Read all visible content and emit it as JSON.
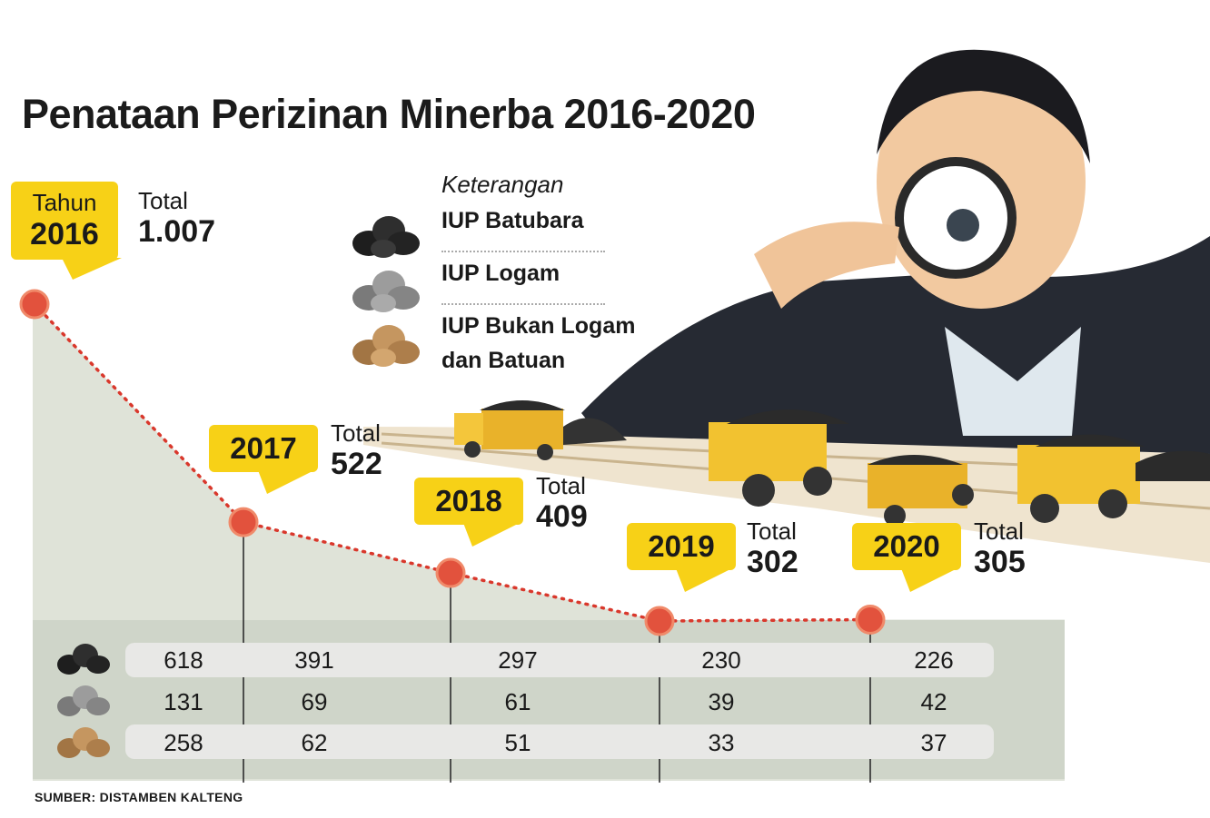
{
  "title": "Penataan Perizinan Minerba 2016-2020",
  "source": "SUMBER: DISTAMBEN KALTENG",
  "legend": {
    "title": "Keterangan",
    "items": [
      {
        "label": "IUP Batubara",
        "icon": "coal-lumps-icon",
        "color": "#2a2a2a"
      },
      {
        "label": "IUP Logam",
        "icon": "metal-ore-icon",
        "color": "#8f8f8f"
      },
      {
        "label": "IUP Bukan Logam dan Batuan",
        "icon": "stone-lumps-icon",
        "color": "#b08552"
      }
    ]
  },
  "years": [
    {
      "year_prefix": "Tahun",
      "year": "2016",
      "total_label": "Total",
      "total": "1.007"
    },
    {
      "year": "2017",
      "total_label": "Total",
      "total": "522"
    },
    {
      "year": "2018",
      "total_label": "Total",
      "total": "409"
    },
    {
      "year": "2019",
      "total_label": "Total",
      "total": "302"
    },
    {
      "year": "2020",
      "total_label": "Total",
      "total": "305"
    }
  ],
  "table": {
    "rows": [
      {
        "category": "IUP Batubara",
        "icon": "coal-lumps-icon",
        "values": [
          "618",
          "391",
          "297",
          "230",
          "226"
        ]
      },
      {
        "category": "IUP Logam",
        "icon": "metal-ore-icon",
        "values": [
          "131",
          "69",
          "61",
          "39",
          "42"
        ]
      },
      {
        "category": "IUP Bukan Logam dan Batuan",
        "icon": "stone-lumps-icon",
        "values": [
          "258",
          "62",
          "51",
          "33",
          "37"
        ]
      }
    ]
  },
  "colors": {
    "badge": "#f7d117",
    "line": "#d9382c",
    "area": "#dfe3d8",
    "table_bg": "#cfd5c9"
  },
  "chart_data": {
    "type": "line",
    "title": "Penataan Perizinan Minerba 2016-2020",
    "categories": [
      "2016",
      "2017",
      "2018",
      "2019",
      "2020"
    ],
    "series": [
      {
        "name": "Total",
        "values": [
          1007,
          522,
          409,
          302,
          305
        ]
      }
    ],
    "breakdown": [
      {
        "name": "IUP Batubara",
        "values": [
          618,
          391,
          297,
          230,
          226
        ]
      },
      {
        "name": "IUP Logam",
        "values": [
          131,
          69,
          61,
          39,
          42
        ]
      },
      {
        "name": "IUP Bukan Logam dan Batuan",
        "values": [
          258,
          62,
          51,
          33,
          37
        ]
      }
    ],
    "grid": false,
    "legend": "top-center"
  }
}
